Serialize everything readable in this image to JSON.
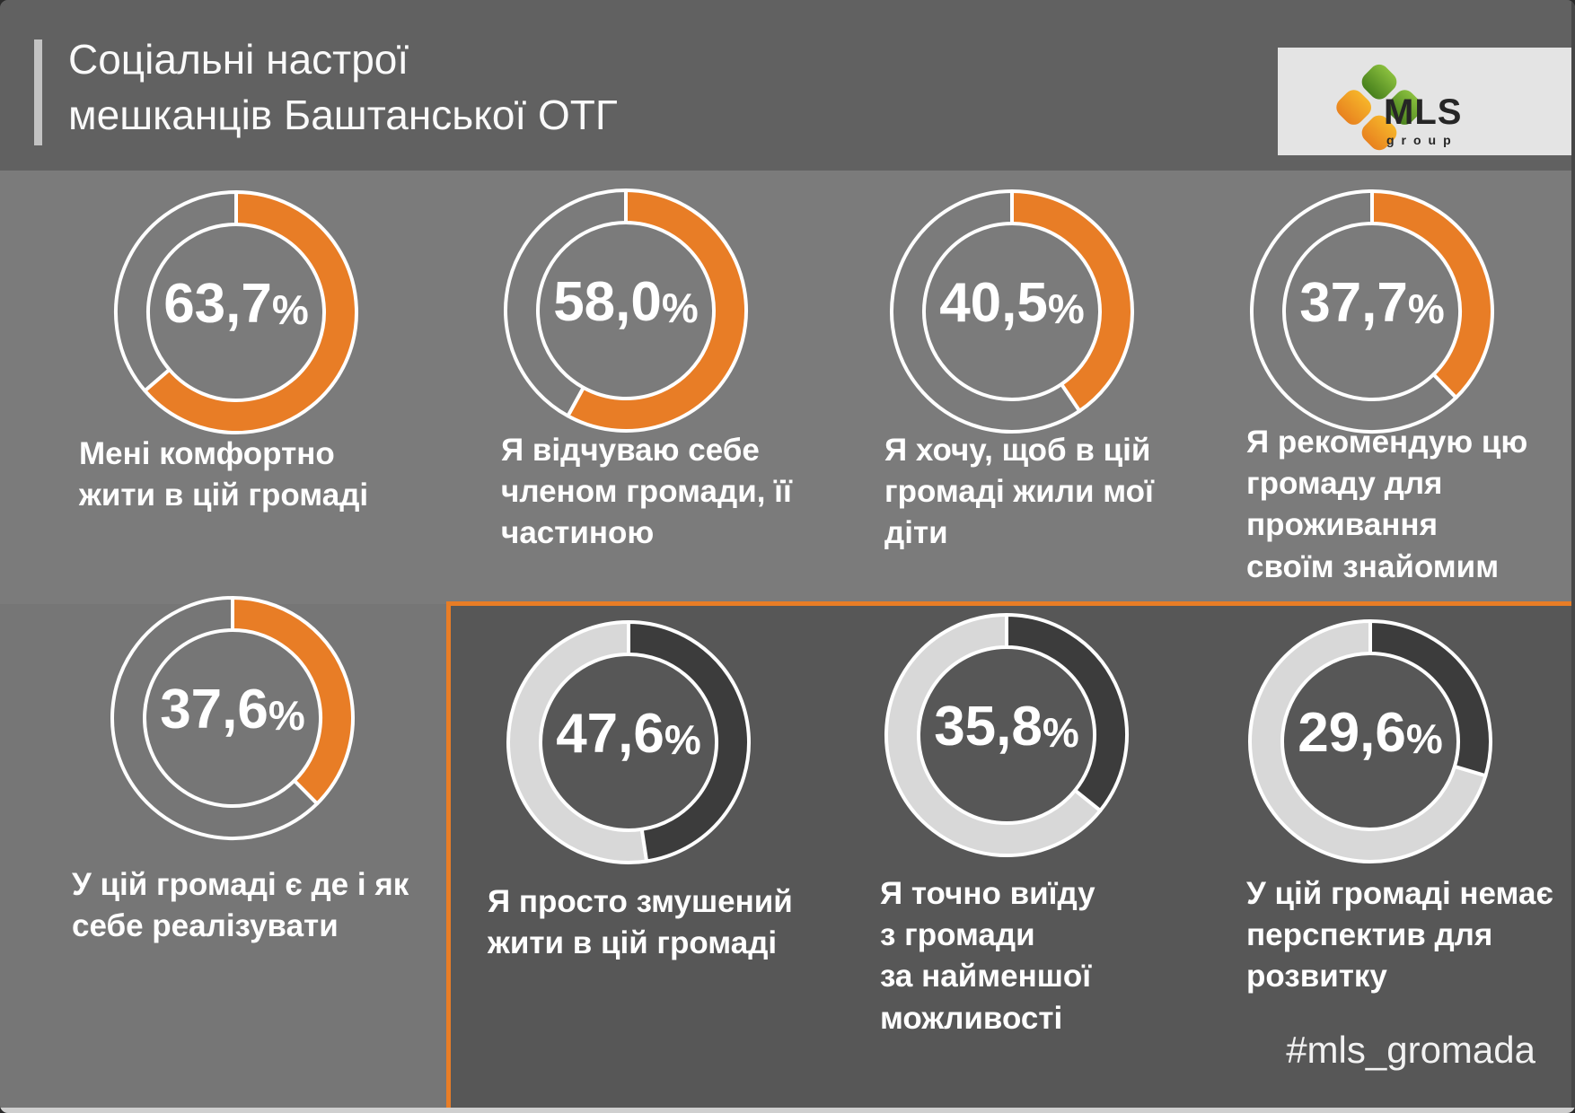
{
  "header": {
    "title_line1": "Соціальні настрої",
    "title_line2": "мешканців Баштанської ОТГ",
    "logo": {
      "text": "MLS",
      "subtext": "group"
    }
  },
  "hashtag": "#mls_gromada",
  "colors": {
    "accent_orange": "#e87d26",
    "negative_dark": "#3c3c3c",
    "rest_light": "#d8d8d8",
    "header_bg": "#616161",
    "row1_bg": "#7b7b7b",
    "left_panel_bg": "#767676",
    "dark_panel_bg": "#575757",
    "white": "#ffffff"
  },
  "chart_data": {
    "type": "donut",
    "unit": "%",
    "start_angle_deg": 0,
    "direction": "clockwise",
    "legend": "none",
    "groups": [
      {
        "name": "positive-attitudes",
        "arc_color": "#e87d26"
      },
      {
        "name": "negative-attitudes",
        "arc_color": "#3c3c3c"
      }
    ],
    "charts": [
      {
        "group": "positive-attitudes",
        "value_pct": 63.7,
        "value_label": "63,7",
        "suffix": "%",
        "series_color": "#e87d26",
        "rest_color": "#7b7b7b",
        "caption": "Мені комфортно\nжити в цій громаді"
      },
      {
        "group": "positive-attitudes",
        "value_pct": 58.0,
        "value_label": "58,0",
        "suffix": "%",
        "series_color": "#e87d26",
        "rest_color": "#7b7b7b",
        "caption": "Я відчуваю себе\nчленом громади, її\nчастиною"
      },
      {
        "group": "positive-attitudes",
        "value_pct": 40.5,
        "value_label": "40,5",
        "suffix": "%",
        "series_color": "#e87d26",
        "rest_color": "#7b7b7b",
        "caption": "Я хочу, щоб в цій\nгромаді жили мої\nдіти"
      },
      {
        "group": "positive-attitudes",
        "value_pct": 37.7,
        "value_label": "37,7",
        "suffix": "%",
        "series_color": "#e87d26",
        "rest_color": "#7b7b7b",
        "caption": "Я рекомендую цю\nгромаду для\nпроживання\nсвоїм знайомим"
      },
      {
        "group": "positive-attitudes",
        "value_pct": 37.6,
        "value_label": "37,6",
        "suffix": "%",
        "series_color": "#e87d26",
        "rest_color": "#767676",
        "caption": "У цій громаді є де і як\nсебе реалізувати"
      },
      {
        "group": "negative-attitudes",
        "value_pct": 47.6,
        "value_label": "47,6",
        "suffix": "%",
        "series_color": "#3c3c3c",
        "rest_color": "#d8d8d8",
        "caption": "Я просто змушений\nжити в цій громаді"
      },
      {
        "group": "negative-attitudes",
        "value_pct": 35.8,
        "value_label": "35,8",
        "suffix": "%",
        "series_color": "#3c3c3c",
        "rest_color": "#d8d8d8",
        "caption": "Я точно виїду\nз громади\nза найменшої\nможливості"
      },
      {
        "group": "negative-attitudes",
        "value_pct": 29.6,
        "value_label": "29,6",
        "suffix": "%",
        "series_color": "#3c3c3c",
        "rest_color": "#d8d8d8",
        "caption": "У цій громаді немає\nперспектив для\nрозвитку"
      }
    ]
  }
}
